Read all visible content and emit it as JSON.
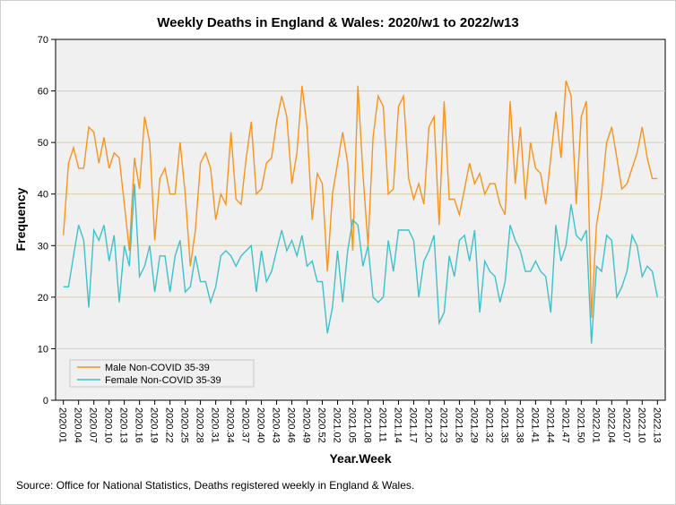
{
  "chart_data": {
    "type": "line",
    "title": "Weekly Deaths in England & Wales: 2020/w1 to 2022/w13",
    "xlabel": "Year.Week",
    "ylabel": "Frequency",
    "ylim": [
      0,
      70
    ],
    "yticks": [
      0,
      10,
      20,
      30,
      40,
      50,
      60,
      70
    ],
    "grid": true,
    "legend_position": "bottom-left",
    "xtick_labels": [
      "2020.01",
      "2020.04",
      "2020.07",
      "2020.10",
      "2020.13",
      "2020.16",
      "2020.19",
      "2020.22",
      "2020.25",
      "2020.28",
      "2020.31",
      "2020.34",
      "2020.37",
      "2020.40",
      "2020.43",
      "2020.46",
      "2020.49",
      "2020.52",
      "2021.02",
      "2021.05",
      "2021.08",
      "2021.11",
      "2021.14",
      "2021.17",
      "2021.20",
      "2021.23",
      "2021.26",
      "2021.29",
      "2021.32",
      "2021.35",
      "2021.38",
      "2021.41",
      "2021.44",
      "2021.47",
      "2021.50",
      "2022.01",
      "2022.04",
      "2022.07",
      "2022.10",
      "2022.13"
    ],
    "series": [
      {
        "name": "Male Non-COVID 35-39",
        "color": "#f7941d",
        "values": [
          32,
          46,
          49,
          45,
          45,
          53,
          52,
          46,
          51,
          45,
          48,
          47,
          38,
          29,
          47,
          41,
          55,
          50,
          31,
          43,
          45,
          40,
          40,
          50,
          40,
          26,
          33,
          46,
          48,
          45,
          35,
          40,
          38,
          52,
          39,
          38,
          47,
          54,
          40,
          41,
          46,
          47,
          54,
          59,
          55,
          42,
          48,
          61,
          53,
          35,
          44,
          42,
          25,
          40,
          46,
          52,
          46,
          29,
          61,
          44,
          30,
          51,
          59,
          57,
          40,
          41,
          57,
          59,
          43,
          39,
          42,
          38,
          53,
          55,
          34,
          58,
          39,
          39,
          36,
          41,
          46,
          42,
          44,
          40,
          42,
          42,
          38,
          36,
          58,
          42,
          53,
          39,
          50,
          45,
          44,
          38,
          47,
          56,
          47,
          62,
          59,
          38,
          55,
          58,
          16,
          34,
          40,
          50,
          53,
          47,
          41,
          42,
          45,
          48,
          53,
          47,
          43,
          43
        ]
      },
      {
        "name": "Female Non-COVID 35-39",
        "color": "#3fc1c9",
        "values": [
          22,
          22,
          28,
          34,
          31,
          18,
          33,
          31,
          34,
          27,
          32,
          19,
          30,
          26,
          42,
          24,
          26,
          30,
          21,
          28,
          28,
          21,
          28,
          31,
          21,
          22,
          28,
          23,
          23,
          19,
          22,
          28,
          29,
          28,
          26,
          28,
          29,
          30,
          21,
          29,
          23,
          25,
          29,
          33,
          29,
          31,
          28,
          32,
          26,
          27,
          23,
          23,
          13,
          18,
          29,
          19,
          29,
          35,
          34,
          26,
          30,
          20,
          19,
          20,
          31,
          25,
          33,
          33,
          33,
          31,
          20,
          27,
          29,
          32,
          15,
          17,
          28,
          24,
          31,
          32,
          27,
          33,
          17,
          27,
          25,
          24,
          19,
          23,
          34,
          31,
          29,
          25,
          25,
          27,
          25,
          24,
          17,
          34,
          27,
          30,
          38,
          32,
          31,
          33,
          11,
          26,
          25,
          32,
          31,
          20,
          22,
          25,
          32,
          30,
          24,
          26,
          25,
          20
        ]
      }
    ]
  },
  "source": "Source: Office for National Statistics, Deaths registered weekly in England & Wales."
}
